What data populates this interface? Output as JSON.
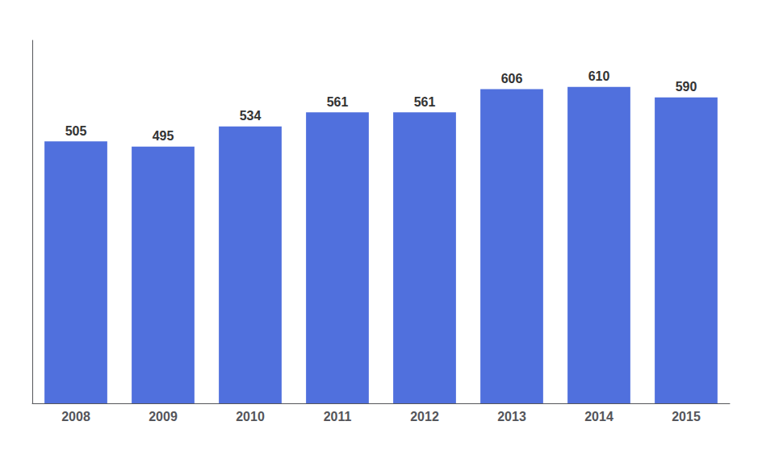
{
  "chart_data": {
    "type": "bar",
    "categories": [
      "2008",
      "2009",
      "2010",
      "2011",
      "2012",
      "2013",
      "2014",
      "2015"
    ],
    "values": [
      505,
      495,
      534,
      561,
      561,
      606,
      610,
      590
    ],
    "ylim": [
      0,
      700
    ],
    "grid": false,
    "data_labels": true,
    "tick_labels": "x"
  }
}
